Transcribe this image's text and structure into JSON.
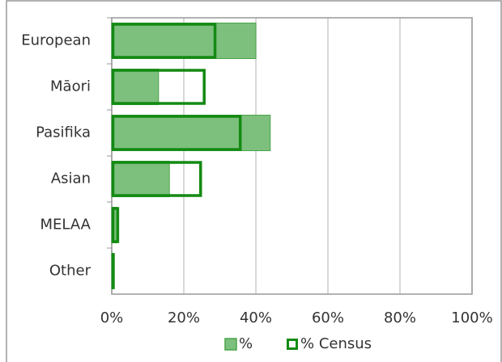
{
  "chart_data": {
    "type": "bar",
    "orientation": "horizontal",
    "categories": [
      "European",
      "Māori",
      "Pasifika",
      "Asian",
      "MELAA",
      "Other"
    ],
    "series": [
      {
        "name": "%",
        "color": "#7dbf7d",
        "values": [
          40,
          13,
          44,
          16,
          1.5,
          0.5
        ]
      },
      {
        "name": "% Census",
        "color": "#138a13",
        "values": [
          29,
          26,
          36,
          25,
          2,
          0.7
        ]
      }
    ],
    "xlim": [
      0,
      100
    ],
    "xticks": [
      {
        "value": 0,
        "label": "0%"
      },
      {
        "value": 20,
        "label": "20%"
      },
      {
        "value": 40,
        "label": "40%"
      },
      {
        "value": 60,
        "label": "60%"
      },
      {
        "value": 80,
        "label": "80%"
      },
      {
        "value": 100,
        "label": "100%"
      }
    ],
    "grid": true,
    "legend": "bottom"
  }
}
